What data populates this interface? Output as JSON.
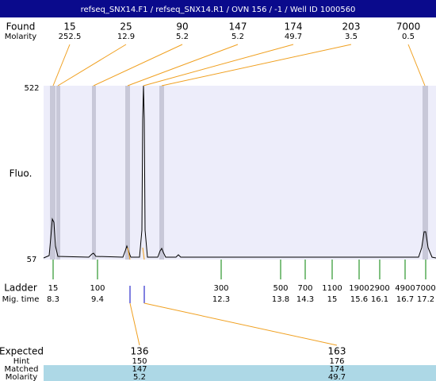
{
  "header": {
    "title": "refseq_SNX14.F1 / refseq_SNX14.R1 / OVN 156 / -1 / Well ID 1000560"
  },
  "found": {
    "label": "Found",
    "sublabel": "Molarity",
    "peaks": [
      {
        "size": "15",
        "molarity": "252.5"
      },
      {
        "size": "25",
        "molarity": "12.9"
      },
      {
        "size": "90",
        "molarity": "5.2"
      },
      {
        "size": "147",
        "molarity": "5.2"
      },
      {
        "size": "174",
        "molarity": "49.7"
      },
      {
        "size": "203",
        "molarity": "3.5"
      },
      {
        "size": "7000",
        "molarity": "0.5"
      }
    ]
  },
  "plot": {
    "y_label": "Fluo.",
    "y_max": "522",
    "y_min": "57"
  },
  "ladder": {
    "label": "Ladder",
    "sublabel": "Mig. time",
    "items": [
      {
        "size": "15",
        "time": "8.3"
      },
      {
        "size": "100",
        "time": "9.4"
      },
      {
        "size": "300",
        "time": "12.3"
      },
      {
        "size": "500",
        "time": "13.8"
      },
      {
        "size": "700",
        "time": "14.3"
      },
      {
        "size": "1100",
        "time": "15"
      },
      {
        "size": "1900",
        "time": "15.6"
      },
      {
        "size": "2900",
        "time": "16.1"
      },
      {
        "size": "4900",
        "time": "16.7"
      },
      {
        "size": "7000",
        "time": "17.2"
      }
    ]
  },
  "expected": {
    "labels": [
      "Expected",
      "Hint",
      "Matched",
      "Molarity"
    ],
    "items": [
      {
        "expected": "136",
        "hint": "150",
        "matched": "147",
        "molarity": "5.2"
      },
      {
        "expected": "163",
        "hint": "176",
        "matched": "174",
        "molarity": "49.7"
      }
    ]
  }
}
